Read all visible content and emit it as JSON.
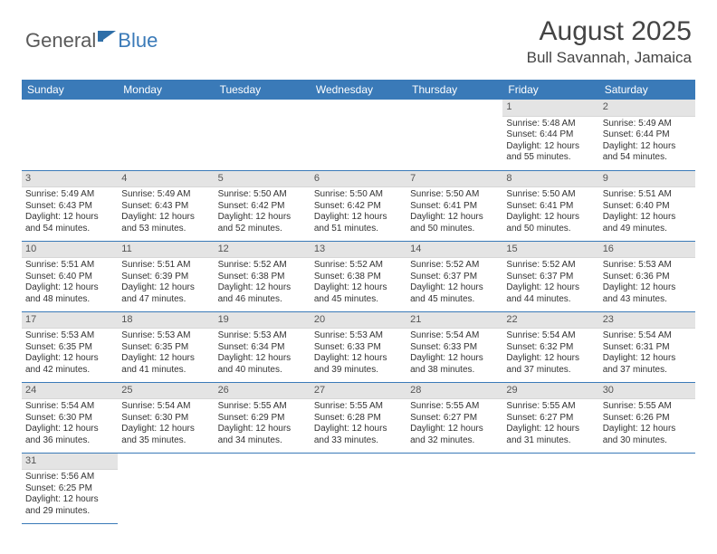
{
  "logo": {
    "general": "General",
    "blue": "Blue"
  },
  "title": "August 2025",
  "location": "Bull Savannah, Jamaica",
  "colors": {
    "header_bg": "#3a7ab8",
    "day_bg": "#e4e4e4",
    "border": "#3a7ab8"
  },
  "weekdays": [
    "Sunday",
    "Monday",
    "Tuesday",
    "Wednesday",
    "Thursday",
    "Friday",
    "Saturday"
  ],
  "weeks": [
    [
      null,
      null,
      null,
      null,
      null,
      {
        "n": "1",
        "sr": "Sunrise: 5:48 AM",
        "ss": "Sunset: 6:44 PM",
        "dl": "Daylight: 12 hours and 55 minutes."
      },
      {
        "n": "2",
        "sr": "Sunrise: 5:49 AM",
        "ss": "Sunset: 6:44 PM",
        "dl": "Daylight: 12 hours and 54 minutes."
      }
    ],
    [
      {
        "n": "3",
        "sr": "Sunrise: 5:49 AM",
        "ss": "Sunset: 6:43 PM",
        "dl": "Daylight: 12 hours and 54 minutes."
      },
      {
        "n": "4",
        "sr": "Sunrise: 5:49 AM",
        "ss": "Sunset: 6:43 PM",
        "dl": "Daylight: 12 hours and 53 minutes."
      },
      {
        "n": "5",
        "sr": "Sunrise: 5:50 AM",
        "ss": "Sunset: 6:42 PM",
        "dl": "Daylight: 12 hours and 52 minutes."
      },
      {
        "n": "6",
        "sr": "Sunrise: 5:50 AM",
        "ss": "Sunset: 6:42 PM",
        "dl": "Daylight: 12 hours and 51 minutes."
      },
      {
        "n": "7",
        "sr": "Sunrise: 5:50 AM",
        "ss": "Sunset: 6:41 PM",
        "dl": "Daylight: 12 hours and 50 minutes."
      },
      {
        "n": "8",
        "sr": "Sunrise: 5:50 AM",
        "ss": "Sunset: 6:41 PM",
        "dl": "Daylight: 12 hours and 50 minutes."
      },
      {
        "n": "9",
        "sr": "Sunrise: 5:51 AM",
        "ss": "Sunset: 6:40 PM",
        "dl": "Daylight: 12 hours and 49 minutes."
      }
    ],
    [
      {
        "n": "10",
        "sr": "Sunrise: 5:51 AM",
        "ss": "Sunset: 6:40 PM",
        "dl": "Daylight: 12 hours and 48 minutes."
      },
      {
        "n": "11",
        "sr": "Sunrise: 5:51 AM",
        "ss": "Sunset: 6:39 PM",
        "dl": "Daylight: 12 hours and 47 minutes."
      },
      {
        "n": "12",
        "sr": "Sunrise: 5:52 AM",
        "ss": "Sunset: 6:38 PM",
        "dl": "Daylight: 12 hours and 46 minutes."
      },
      {
        "n": "13",
        "sr": "Sunrise: 5:52 AM",
        "ss": "Sunset: 6:38 PM",
        "dl": "Daylight: 12 hours and 45 minutes."
      },
      {
        "n": "14",
        "sr": "Sunrise: 5:52 AM",
        "ss": "Sunset: 6:37 PM",
        "dl": "Daylight: 12 hours and 45 minutes."
      },
      {
        "n": "15",
        "sr": "Sunrise: 5:52 AM",
        "ss": "Sunset: 6:37 PM",
        "dl": "Daylight: 12 hours and 44 minutes."
      },
      {
        "n": "16",
        "sr": "Sunrise: 5:53 AM",
        "ss": "Sunset: 6:36 PM",
        "dl": "Daylight: 12 hours and 43 minutes."
      }
    ],
    [
      {
        "n": "17",
        "sr": "Sunrise: 5:53 AM",
        "ss": "Sunset: 6:35 PM",
        "dl": "Daylight: 12 hours and 42 minutes."
      },
      {
        "n": "18",
        "sr": "Sunrise: 5:53 AM",
        "ss": "Sunset: 6:35 PM",
        "dl": "Daylight: 12 hours and 41 minutes."
      },
      {
        "n": "19",
        "sr": "Sunrise: 5:53 AM",
        "ss": "Sunset: 6:34 PM",
        "dl": "Daylight: 12 hours and 40 minutes."
      },
      {
        "n": "20",
        "sr": "Sunrise: 5:53 AM",
        "ss": "Sunset: 6:33 PM",
        "dl": "Daylight: 12 hours and 39 minutes."
      },
      {
        "n": "21",
        "sr": "Sunrise: 5:54 AM",
        "ss": "Sunset: 6:33 PM",
        "dl": "Daylight: 12 hours and 38 minutes."
      },
      {
        "n": "22",
        "sr": "Sunrise: 5:54 AM",
        "ss": "Sunset: 6:32 PM",
        "dl": "Daylight: 12 hours and 37 minutes."
      },
      {
        "n": "23",
        "sr": "Sunrise: 5:54 AM",
        "ss": "Sunset: 6:31 PM",
        "dl": "Daylight: 12 hours and 37 minutes."
      }
    ],
    [
      {
        "n": "24",
        "sr": "Sunrise: 5:54 AM",
        "ss": "Sunset: 6:30 PM",
        "dl": "Daylight: 12 hours and 36 minutes."
      },
      {
        "n": "25",
        "sr": "Sunrise: 5:54 AM",
        "ss": "Sunset: 6:30 PM",
        "dl": "Daylight: 12 hours and 35 minutes."
      },
      {
        "n": "26",
        "sr": "Sunrise: 5:55 AM",
        "ss": "Sunset: 6:29 PM",
        "dl": "Daylight: 12 hours and 34 minutes."
      },
      {
        "n": "27",
        "sr": "Sunrise: 5:55 AM",
        "ss": "Sunset: 6:28 PM",
        "dl": "Daylight: 12 hours and 33 minutes."
      },
      {
        "n": "28",
        "sr": "Sunrise: 5:55 AM",
        "ss": "Sunset: 6:27 PM",
        "dl": "Daylight: 12 hours and 32 minutes."
      },
      {
        "n": "29",
        "sr": "Sunrise: 5:55 AM",
        "ss": "Sunset: 6:27 PM",
        "dl": "Daylight: 12 hours and 31 minutes."
      },
      {
        "n": "30",
        "sr": "Sunrise: 5:55 AM",
        "ss": "Sunset: 6:26 PM",
        "dl": "Daylight: 12 hours and 30 minutes."
      }
    ],
    [
      {
        "n": "31",
        "sr": "Sunrise: 5:56 AM",
        "ss": "Sunset: 6:25 PM",
        "dl": "Daylight: 12 hours and 29 minutes."
      },
      null,
      null,
      null,
      null,
      null,
      null
    ]
  ]
}
